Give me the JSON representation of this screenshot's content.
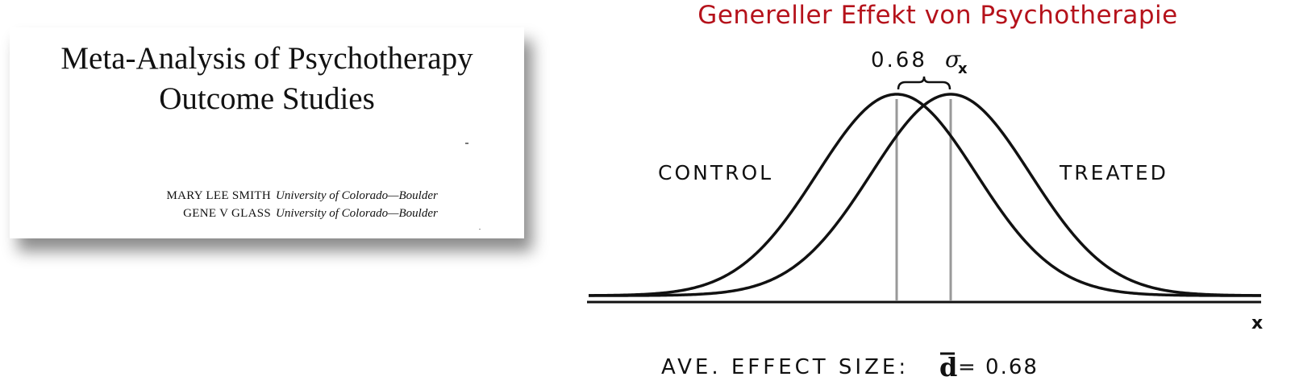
{
  "paper": {
    "title_line1": "Meta-Analysis of Psychotherapy",
    "title_line2": "Outcome Studies",
    "authors": [
      {
        "name": "MARY LEE SMITH",
        "affiliation": "University of Colorado—Boulder"
      },
      {
        "name": "GENE V GLASS",
        "affiliation": "University of Colorado—Boulder"
      }
    ]
  },
  "slide": {
    "title": "Genereller Effekt von Psychotherapie"
  },
  "diagram": {
    "effect_label": "0.68",
    "sigma_symbol": "σ",
    "sigma_subscript": "x",
    "control_label": "CONTROL",
    "treated_label": "TREATED",
    "x_axis_label": "x",
    "caption_prefix": "AVE. EFFECT SIZE:",
    "caption_symbol": "d",
    "caption_value": "= 0.68",
    "effect_size": 0.68,
    "control_mean": 0,
    "treated_mean": 0.68,
    "line_color": "#111111",
    "mean_line_color": "#999999"
  }
}
